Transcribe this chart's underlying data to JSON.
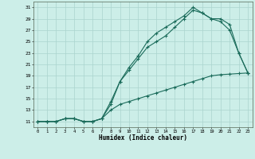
{
  "xlabel": "Humidex (Indice chaleur)",
  "bg_color": "#cceee8",
  "grid_color": "#aad4ce",
  "line_color": "#1a6b5a",
  "xlim": [
    -0.5,
    23.5
  ],
  "ylim": [
    10.0,
    32.0
  ],
  "xticks": [
    0,
    1,
    2,
    3,
    4,
    5,
    6,
    7,
    8,
    9,
    10,
    11,
    12,
    13,
    14,
    15,
    16,
    17,
    18,
    19,
    20,
    21,
    22,
    23
  ],
  "yticks": [
    11,
    13,
    15,
    17,
    19,
    21,
    23,
    25,
    27,
    29,
    31
  ],
  "line1_x": [
    0,
    1,
    2,
    3,
    4,
    5,
    6,
    7,
    8,
    9,
    10,
    11,
    12,
    13,
    14,
    15,
    16,
    17,
    18,
    19,
    20,
    21,
    22,
    23
  ],
  "line1_y": [
    11,
    11,
    11,
    11.5,
    11.5,
    11,
    11,
    11.5,
    14,
    18,
    20,
    22,
    24,
    25,
    26,
    27.5,
    29,
    30.5,
    30,
    29,
    28.5,
    27,
    23,
    19.5
  ],
  "line2_x": [
    0,
    1,
    2,
    3,
    4,
    5,
    6,
    7,
    8,
    9,
    10,
    11,
    12,
    13,
    14,
    15,
    16,
    17,
    18,
    19,
    20,
    21,
    22,
    23
  ],
  "line2_y": [
    11,
    11,
    11,
    11.5,
    11.5,
    11,
    11,
    11.5,
    14.5,
    18,
    20.5,
    22.5,
    25,
    26.5,
    27.5,
    28.5,
    29.5,
    31,
    30,
    29,
    29,
    28,
    23,
    19.5
  ],
  "line3_x": [
    0,
    1,
    2,
    3,
    4,
    5,
    6,
    7,
    8,
    9,
    10,
    11,
    12,
    13,
    14,
    15,
    16,
    17,
    18,
    19,
    20,
    21,
    22,
    23
  ],
  "line3_y": [
    11,
    11,
    11,
    11.5,
    11.5,
    11,
    11,
    11.5,
    13,
    14,
    14.5,
    15,
    15.5,
    16,
    16.5,
    17,
    17.5,
    18,
    18.5,
    19,
    19.2,
    19.3,
    19.4,
    19.5
  ]
}
